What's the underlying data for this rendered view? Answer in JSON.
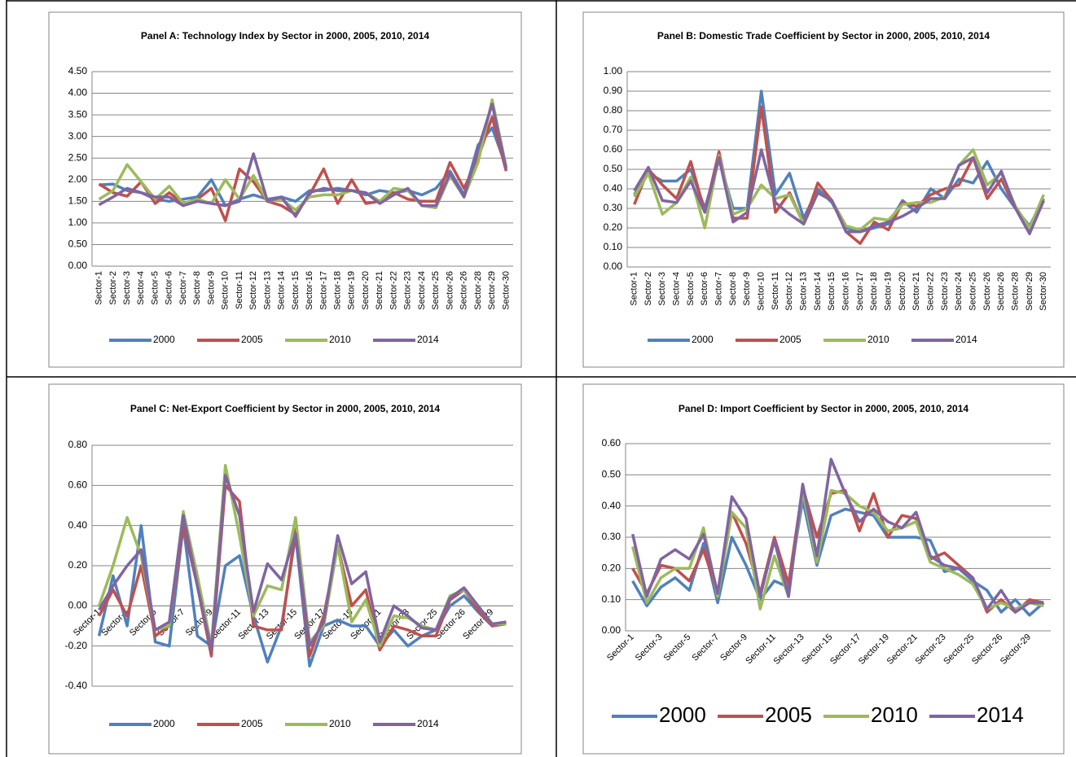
{
  "chart_data": [
    {
      "type": "line",
      "title": "Panel A: Technology Index by Sector in 2000, 2005, 2010, 2014",
      "categories": [
        "Sector-1",
        "Sector-2",
        "Sector-3",
        "Sector-4",
        "Sector-5",
        "Sector-6",
        "Sector-7",
        "Sector-8",
        "Sector-9",
        "Sector-10",
        "Sector-11",
        "Sector-12",
        "Sector-13",
        "Sector-14",
        "Sector-15",
        "Sector-16",
        "Sector-17",
        "Sector-18",
        "Sector-19",
        "Sector-20",
        "Sector-21",
        "Sector-22",
        "Sector-23",
        "Sector-24",
        "Sector-25",
        "Sector-26",
        "Sector-26",
        "Sector-28",
        "Sector-29",
        "Sector-30"
      ],
      "series": [
        {
          "name": "2000",
          "color": "#4F81BD",
          "values": [
            1.88,
            1.9,
            1.75,
            1.7,
            1.55,
            1.5,
            1.55,
            1.6,
            2.0,
            1.4,
            1.55,
            1.65,
            1.55,
            1.6,
            1.5,
            1.75,
            1.75,
            1.8,
            1.75,
            1.65,
            1.75,
            1.7,
            1.75,
            1.65,
            1.8,
            2.2,
            1.65,
            2.8,
            3.2,
            2.3
          ]
        },
        {
          "name": "2005",
          "color": "#C0504D",
          "values": [
            1.9,
            1.7,
            1.62,
            1.95,
            1.45,
            1.7,
            1.45,
            1.55,
            1.8,
            1.05,
            2.25,
            1.95,
            1.5,
            1.4,
            1.2,
            1.65,
            2.25,
            1.45,
            2.0,
            1.45,
            1.5,
            1.7,
            1.55,
            1.5,
            1.5,
            2.4,
            1.8,
            2.5,
            3.45,
            2.2
          ]
        },
        {
          "name": "2010",
          "color": "#9BBB59",
          "values": [
            1.55,
            1.75,
            2.35,
            1.95,
            1.55,
            1.85,
            1.45,
            1.55,
            1.45,
            2.0,
            1.55,
            2.1,
            1.5,
            1.55,
            1.3,
            1.6,
            1.65,
            1.65,
            1.75,
            1.7,
            1.5,
            1.8,
            1.75,
            1.4,
            1.35,
            2.1,
            1.6,
            2.4,
            3.85,
            2.3
          ]
        },
        {
          "name": "2014",
          "color": "#8064A2",
          "values": [
            1.42,
            1.6,
            1.8,
            1.7,
            1.6,
            1.6,
            1.4,
            1.5,
            1.45,
            1.4,
            1.5,
            2.6,
            1.5,
            1.6,
            1.15,
            1.7,
            1.8,
            1.75,
            1.75,
            1.7,
            1.45,
            1.65,
            1.8,
            1.4,
            1.4,
            2.15,
            1.6,
            2.7,
            3.75,
            2.25
          ]
        }
      ],
      "ylim": [
        0,
        4.5
      ],
      "yticks": [
        {
          "value": 0,
          "label": "0.00"
        },
        {
          "value": 0.5,
          "label": "0.50"
        },
        {
          "value": 1,
          "label": "1.00"
        },
        {
          "value": 1.5,
          "label": "1.50"
        },
        {
          "value": 2,
          "label": "2.00"
        },
        {
          "value": 2.5,
          "label": "2.50"
        },
        {
          "value": 3,
          "label": "3.00"
        },
        {
          "value": 3.5,
          "label": "3.50"
        },
        {
          "value": 4,
          "label": "4.00"
        },
        {
          "value": 4.5,
          "label": "4.50"
        }
      ],
      "grid": true,
      "legend": "bottom"
    },
    {
      "type": "line",
      "title": "Panel B:  Domestic Trade Coefficient by Sector in 2000, 2005, 2010, 2014",
      "categories": [
        "Sector-1",
        "Sector-2",
        "Sector-3",
        "Sector-4",
        "Sector-5",
        "Sector-6",
        "Sector-7",
        "Sector-8",
        "Sector-9",
        "Sector-10",
        "Sector-11",
        "Sector-12",
        "Sector-13",
        "Sector-14",
        "Sector-15",
        "Sector-16",
        "Sector-17",
        "Sector-18",
        "Sector-19",
        "Sector-20",
        "Sector-21",
        "Sector-22",
        "Sector-23",
        "Sector-24",
        "Sector-25",
        "Sector-26",
        "Sector-26",
        "Sector-28",
        "Sector-29",
        "Sector-30"
      ],
      "series": [
        {
          "name": "2000",
          "color": "#4F81BD",
          "values": [
            0.37,
            0.48,
            0.44,
            0.44,
            0.5,
            0.3,
            0.55,
            0.3,
            0.3,
            0.9,
            0.37,
            0.48,
            0.25,
            0.4,
            0.33,
            0.2,
            0.18,
            0.2,
            0.22,
            0.34,
            0.28,
            0.4,
            0.35,
            0.45,
            0.43,
            0.54,
            0.4,
            0.3,
            0.21,
            0.35
          ]
        },
        {
          "name": "2005",
          "color": "#C0504D",
          "values": [
            0.32,
            0.5,
            0.42,
            0.35,
            0.54,
            0.28,
            0.59,
            0.25,
            0.25,
            0.82,
            0.28,
            0.38,
            0.22,
            0.43,
            0.34,
            0.18,
            0.12,
            0.23,
            0.19,
            0.33,
            0.31,
            0.37,
            0.4,
            0.42,
            0.56,
            0.35,
            0.45,
            0.3,
            0.18,
            0.34
          ]
        },
        {
          "name": "2010",
          "color": "#9BBB59",
          "values": [
            0.36,
            0.48,
            0.27,
            0.33,
            0.46,
            0.2,
            0.57,
            0.27,
            0.3,
            0.42,
            0.35,
            0.37,
            0.22,
            0.38,
            0.34,
            0.21,
            0.19,
            0.25,
            0.24,
            0.32,
            0.33,
            0.33,
            0.36,
            0.52,
            0.6,
            0.42,
            0.48,
            0.31,
            0.2,
            0.37
          ]
        },
        {
          "name": "2014",
          "color": "#8064A2",
          "values": [
            0.39,
            0.51,
            0.34,
            0.33,
            0.44,
            0.28,
            0.56,
            0.23,
            0.28,
            0.6,
            0.33,
            0.27,
            0.22,
            0.38,
            0.34,
            0.18,
            0.18,
            0.21,
            0.23,
            0.26,
            0.3,
            0.35,
            0.35,
            0.52,
            0.56,
            0.38,
            0.49,
            0.3,
            0.17,
            0.34
          ]
        }
      ],
      "ylim": [
        0,
        1
      ],
      "yticks": [
        {
          "value": 0,
          "label": "0.00"
        },
        {
          "value": 0.1,
          "label": "0.10"
        },
        {
          "value": 0.2,
          "label": "0.20"
        },
        {
          "value": 0.3,
          "label": "0.30"
        },
        {
          "value": 0.4,
          "label": "0.40"
        },
        {
          "value": 0.5,
          "label": "0.50"
        },
        {
          "value": 0.6,
          "label": "0.60"
        },
        {
          "value": 0.7,
          "label": "0.70"
        },
        {
          "value": 0.8,
          "label": "0.80"
        },
        {
          "value": 0.9,
          "label": "0.90"
        },
        {
          "value": 1,
          "label": "1.00"
        }
      ],
      "grid": true,
      "legend": "bottom"
    },
    {
      "type": "line",
      "title": "Panel C:  Net-Export Coefficient by Sector in 2000, 2005, 2010, 2014",
      "categories": [
        "Sector-1",
        null,
        "Sector-3",
        null,
        "Sector-5",
        null,
        "Sector-7",
        null,
        "Sector-9",
        null,
        "Sector-11",
        null,
        "Sector-13",
        null,
        "Sector-15",
        null,
        "Sector-17",
        null,
        "Sector-19",
        null,
        "Sector-21",
        null,
        "Sector-23",
        null,
        "Sector-25",
        null,
        "Sector-26",
        null,
        "Sector-29",
        null
      ],
      "series": [
        {
          "name": "2000",
          "color": "#4F81BD",
          "values": [
            -0.15,
            0.15,
            -0.1,
            0.4,
            -0.18,
            -0.2,
            0.4,
            -0.15,
            -0.2,
            0.2,
            0.25,
            -0.05,
            -0.28,
            -0.1,
            0.35,
            -0.3,
            -0.1,
            -0.07,
            -0.1,
            -0.1,
            -0.2,
            -0.12,
            -0.2,
            -0.15,
            -0.12,
            0.0,
            0.05,
            -0.03,
            -0.1,
            -0.08
          ]
        },
        {
          "name": "2005",
          "color": "#C0504D",
          "values": [
            -0.05,
            0.08,
            -0.05,
            0.2,
            -0.15,
            -0.1,
            0.4,
            0.1,
            -0.25,
            0.6,
            0.52,
            -0.1,
            -0.12,
            -0.12,
            0.38,
            -0.25,
            -0.05,
            0.3,
            0.0,
            0.08,
            -0.22,
            -0.1,
            -0.12,
            -0.15,
            -0.15,
            0.03,
            0.08,
            -0.02,
            -0.1,
            -0.09
          ]
        },
        {
          "name": "2010",
          "color": "#9BBB59",
          "values": [
            0.0,
            0.2,
            0.44,
            0.25,
            -0.12,
            -0.1,
            0.47,
            0.15,
            -0.2,
            0.7,
            0.35,
            -0.05,
            0.1,
            0.08,
            0.44,
            -0.18,
            -0.1,
            0.3,
            -0.08,
            0.03,
            -0.2,
            -0.05,
            -0.06,
            -0.1,
            -0.12,
            0.05,
            0.08,
            0.0,
            -0.09,
            -0.09
          ]
        },
        {
          "name": "2014",
          "color": "#8064A2",
          "values": [
            -0.02,
            0.1,
            0.2,
            0.28,
            -0.12,
            -0.08,
            0.45,
            0.1,
            -0.22,
            0.65,
            0.45,
            -0.03,
            0.21,
            0.13,
            0.36,
            -0.2,
            -0.08,
            0.35,
            0.11,
            0.17,
            -0.18,
            0.0,
            -0.05,
            -0.11,
            -0.12,
            0.04,
            0.09,
            0.0,
            -0.09,
            -0.08
          ]
        }
      ],
      "ylim": [
        -0.4,
        0.8
      ],
      "yticks": [
        {
          "value": -0.4,
          "label": "-0.40"
        },
        {
          "value": -0.2,
          "label": "-0.20"
        },
        {
          "value": 0,
          "label": "0.00"
        },
        {
          "value": 0.2,
          "label": "0.20"
        },
        {
          "value": 0.4,
          "label": "0.40"
        },
        {
          "value": 0.6,
          "label": "0.60"
        },
        {
          "value": 0.8,
          "label": "0.80"
        }
      ],
      "grid": true,
      "legend": "bottom"
    },
    {
      "type": "line",
      "title": "Panel D: Import Coefficient by Sector in 2000, 2005, 2010, 2014",
      "categories": [
        "Sector-1",
        null,
        "Sector-3",
        null,
        "Sector-5",
        null,
        "Sector-7",
        null,
        "Sector-9",
        null,
        "Sector-11",
        null,
        "Sector-13",
        null,
        "Sector-15",
        null,
        "Sector-17",
        null,
        "Sector-19",
        null,
        "Sector-21",
        null,
        "Sector-23",
        null,
        "Sector-25",
        null,
        "Sector-26",
        null,
        "Sector-29",
        null
      ],
      "series": [
        {
          "name": "2000",
          "color": "#4F81BD",
          "values": [
            0.16,
            0.08,
            0.14,
            0.17,
            0.13,
            0.28,
            0.09,
            0.3,
            0.21,
            0.1,
            0.16,
            0.14,
            0.42,
            0.21,
            0.37,
            0.39,
            0.38,
            0.37,
            0.3,
            0.3,
            0.3,
            0.29,
            0.19,
            0.2,
            0.16,
            0.13,
            0.06,
            0.1,
            0.05,
            0.09
          ]
        },
        {
          "name": "2005",
          "color": "#C0504D",
          "values": [
            0.2,
            0.12,
            0.21,
            0.2,
            0.16,
            0.26,
            0.12,
            0.38,
            0.28,
            0.12,
            0.3,
            0.15,
            0.46,
            0.3,
            0.44,
            0.45,
            0.32,
            0.44,
            0.3,
            0.37,
            0.36,
            0.23,
            0.25,
            0.21,
            0.17,
            0.06,
            0.1,
            0.06,
            0.1,
            0.09
          ]
        },
        {
          "name": "2010",
          "color": "#9BBB59",
          "values": [
            0.27,
            0.09,
            0.17,
            0.2,
            0.2,
            0.33,
            0.11,
            0.38,
            0.33,
            0.07,
            0.24,
            0.11,
            0.45,
            0.22,
            0.45,
            0.44,
            0.4,
            0.38,
            0.32,
            0.33,
            0.35,
            0.22,
            0.2,
            0.18,
            0.15,
            0.07,
            0.09,
            0.07,
            0.09,
            0.08
          ]
        },
        {
          "name": "2014",
          "color": "#8064A2",
          "values": [
            0.31,
            0.11,
            0.23,
            0.26,
            0.23,
            0.31,
            0.12,
            0.43,
            0.36,
            0.11,
            0.29,
            0.11,
            0.47,
            0.24,
            0.55,
            0.44,
            0.35,
            0.39,
            0.35,
            0.33,
            0.38,
            0.24,
            0.21,
            0.2,
            0.17,
            0.07,
            0.13,
            0.06,
            0.09,
            0.09
          ]
        }
      ],
      "ylim": [
        0,
        0.6
      ],
      "yticks": [
        {
          "value": 0,
          "label": "0.00"
        },
        {
          "value": 0.1,
          "label": "0.10"
        },
        {
          "value": 0.2,
          "label": "0.20"
        },
        {
          "value": 0.3,
          "label": "0.30"
        },
        {
          "value": 0.4,
          "label": "0.40"
        },
        {
          "value": 0.5,
          "label": "0.50"
        },
        {
          "value": 0.6,
          "label": "0.60"
        }
      ],
      "grid": true,
      "legend": "bottom"
    }
  ]
}
